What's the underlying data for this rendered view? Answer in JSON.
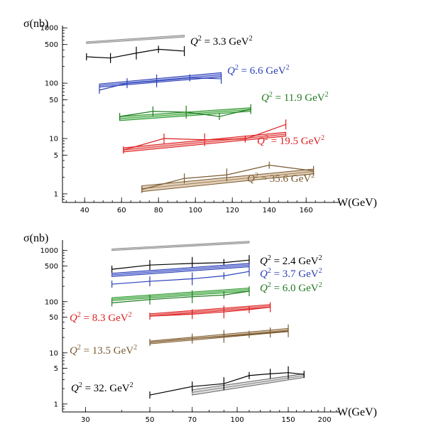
{
  "chart_data": [
    {
      "type": "line",
      "ylabel": "σ(nb)",
      "xlabel": "W(GeV)",
      "xscale": "linear",
      "yscale": "log",
      "xlim": [
        28,
        178
      ],
      "ylim": [
        0.7,
        1100
      ],
      "xticks": [
        40,
        60,
        80,
        100,
        120,
        140,
        160
      ],
      "yticks": [
        1,
        5,
        10,
        50,
        100,
        500,
        1000
      ],
      "series": [
        {
          "name": "Q² = 3.3 GeV²",
          "label_main": "Q",
          "label_rest": " = 3.3 GeV",
          "color": "#000000",
          "band_color": "#9a9a9a",
          "band_fill": "#d9d9d9",
          "data": {
            "x": [
              41,
              54,
              68,
              80,
              94
            ],
            "y": [
              300,
              285,
              350,
              410,
              380
            ]
          },
          "band": {
            "x": [
              41,
              94
            ],
            "lo": [
              520,
              680
            ],
            "hi": [
              560,
              740
            ]
          }
        },
        {
          "name": "Q² = 6.6 GeV²",
          "label_main": "Q",
          "label_rest": " = 6.6 GeV",
          "color": "#2a3fb5",
          "band_color": "#2a3fb5",
          "band_fill": "#aab2e8",
          "data": {
            "x": [
              48,
              63,
              79,
              97,
              114
            ],
            "y": [
              75,
              100,
              110,
              125,
              120
            ]
          },
          "band": {
            "x": [
              48,
              114
            ],
            "lo": [
              85,
              130
            ],
            "hi": [
              97,
              155
            ]
          }
        },
        {
          "name": "Q² = 11.9 GeV²",
          "label_main": "Q",
          "label_rest": " = 11.9 GeV",
          "color": "#1f7a1f",
          "band_color": "#2e9a2e",
          "band_fill": "#a8d8a8",
          "data": {
            "x": [
              59,
              77,
              95,
              113,
              130
            ],
            "y": [
              25,
              31,
              30,
              25,
              34
            ]
          },
          "band": {
            "x": [
              59,
              130
            ],
            "lo": [
              21,
              31
            ],
            "hi": [
              25,
              36
            ]
          }
        },
        {
          "name": "Q² = 19.5 GeV²",
          "label_main": "Q",
          "label_rest": " = 19.5 GeV",
          "color": "#dd1f1f",
          "band_color": "#dd1f1f",
          "band_fill": "#f3b4b4",
          "data": {
            "x": [
              61,
              83,
              105,
              127,
              149
            ],
            "y": [
              6.2,
              10,
              9.5,
              9.8,
              18
            ]
          },
          "band": {
            "x": [
              61,
              149
            ],
            "lo": [
              5.7,
              11
            ],
            "hi": [
              6.8,
              13
            ]
          }
        },
        {
          "name": "Q² = 35.6 GeV²",
          "label_main": "Q",
          "label_rest": " = 35.6 GeV",
          "color": "#7a5a30",
          "band_color": "#7a5a30",
          "band_fill": "#e1cfb8",
          "data": {
            "x": [
              71,
              94,
              117,
              140,
              164
            ],
            "y": [
              1.2,
              1.9,
              2.2,
              3.3,
              2.6
            ]
          },
          "band": {
            "x": [
              71,
              164
            ],
            "lo": [
              1.1,
              2.3
            ],
            "hi": [
              1.4,
              2.8
            ]
          }
        }
      ]
    },
    {
      "type": "line",
      "ylabel": "σ(nb)",
      "xlabel": "W(GeV)",
      "xscale": "log",
      "yscale": "log",
      "xlim": [
        25,
        225
      ],
      "ylim": [
        0.7,
        1600
      ],
      "xticks": [
        30,
        50,
        70,
        100,
        150,
        200
      ],
      "yticks": [
        1,
        5,
        10,
        50,
        100,
        500,
        1000
      ],
      "series": [
        {
          "name": "Q² = 2.4 GeV²",
          "label_main": "Q",
          "label_rest": " = 2.4 GeV",
          "color": "#000000",
          "band_color": "#9a9a9a",
          "band_fill": "#d9d9d9",
          "data": {
            "x": [
              37,
              50,
              70,
              90,
              110
            ],
            "y": [
              430,
              520,
              560,
              580,
              650
            ]
          },
          "band": {
            "x": [
              37,
              110
            ],
            "lo": [
              1000,
              1400
            ],
            "hi": [
              1080,
              1520
            ]
          }
        },
        {
          "name": "Q² = 3.7 GeV²",
          "label_main": "Q",
          "label_rest": " = 3.7 GeV",
          "color": "#2a3fb5",
          "band_color": "#2a3fb5",
          "band_fill": "#aab2e8",
          "data": {
            "x": [
              37,
              50,
              70,
              90,
              110
            ],
            "y": [
              220,
              250,
              280,
              320,
              390
            ]
          },
          "band": {
            "x": [
              37,
              110
            ],
            "lo": [
              310,
              480
            ],
            "hi": [
              360,
              560
            ]
          }
        },
        {
          "name": "Q² = 6.0 GeV²",
          "label_main": "Q",
          "label_rest": " = 6.0 GeV",
          "color": "#1f7a1f",
          "band_color": "#2e9a2e",
          "band_fill": "#a8d8a8",
          "data": {
            "x": [
              37,
              50,
              70,
              90,
              110
            ],
            "y": [
              95,
              110,
              125,
              135,
              160
            ]
          },
          "band": {
            "x": [
              37,
              110
            ],
            "lo": [
              105,
              160
            ],
            "hi": [
              120,
              185
            ]
          }
        },
        {
          "name": "Q² = 8.3 GeV²",
          "label_main": "Q",
          "label_rest": " = 8.3 GeV",
          "color": "#dd1f1f",
          "band_color": "#dd1f1f",
          "band_fill": "#f3b4b4",
          "data": {
            "x": [
              50,
              70,
              90,
              110,
              130
            ],
            "y": [
              52,
              57,
              63,
              70,
              78
            ]
          },
          "band": {
            "x": [
              50,
              130
            ],
            "lo": [
              52,
              78
            ],
            "hi": [
              58,
              88
            ]
          }
        },
        {
          "name": "Q² = 13.5 GeV²",
          "label_main": "Q",
          "label_rest": " = 13.5 GeV",
          "color": "#7a5a30",
          "band_color": "#7a5a30",
          "band_fill": "#e1cfb8",
          "data": {
            "x": [
              50,
              70,
              90,
              110,
              130,
              150
            ],
            "y": [
              16,
              19,
              21,
              23,
              25,
              27
            ]
          },
          "band": {
            "x": [
              50,
              150
            ],
            "lo": [
              15,
              26
            ],
            "hi": [
              17,
              30
            ]
          }
        },
        {
          "name": "Q² = 32. GeV²",
          "label_main": "Q",
          "label_rest": " = 32. GeV",
          "color": "#000000",
          "band_color": "#666666",
          "band_fill": "#dddddd",
          "data": {
            "x": [
              50,
              70,
              90,
              110,
              130,
              150,
              170
            ],
            "y": [
              1.5,
              2.2,
              2.5,
              3.6,
              3.9,
              4.1,
              3.8
            ]
          },
          "band": {
            "x": [
              70,
              170
            ],
            "lo": [
              1.5,
              3.3
            ],
            "hi": [
              1.9,
              3.9
            ]
          }
        }
      ]
    }
  ]
}
